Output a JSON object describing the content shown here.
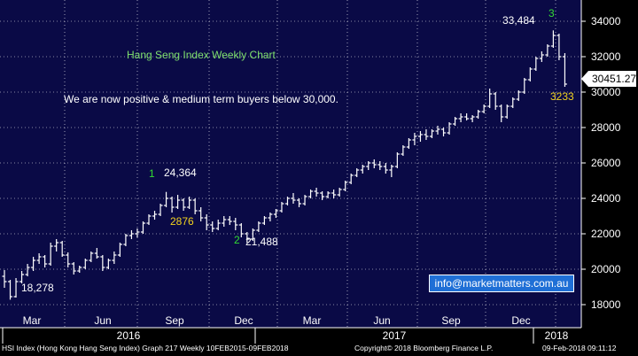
{
  "chart_data": {
    "type": "ohlc",
    "title": "Hang Seng Index Weekly Chart",
    "comment": "We are now positive & medium term buyers below 30,000.",
    "y_ticks": [
      18000,
      20000,
      22000,
      24000,
      26000,
      28000,
      30000,
      32000,
      34000
    ],
    "ylim": [
      16700,
      35200
    ],
    "x_month_labels": [
      "Mar",
      "Jun",
      "Sep",
      "Dec",
      "Mar",
      "Jun",
      "Sep",
      "Dec"
    ],
    "x_year_labels": [
      "2016",
      "2017",
      "2018"
    ],
    "last_price_label": "30451.27",
    "series": [
      {
        "name": "HSI Index",
        "values": [
          [
            19600,
            19950,
            18950,
            19300
          ],
          [
            19300,
            19400,
            18280,
            18450
          ],
          [
            18450,
            19500,
            18400,
            19300
          ],
          [
            19300,
            19900,
            19200,
            19700
          ],
          [
            19700,
            20300,
            19600,
            20100
          ],
          [
            20100,
            20700,
            19900,
            20500
          ],
          [
            20500,
            20900,
            20300,
            20700
          ],
          [
            20700,
            20800,
            20100,
            20300
          ],
          [
            20300,
            21500,
            20200,
            21300
          ],
          [
            21300,
            21700,
            21000,
            21500
          ],
          [
            21500,
            21600,
            20700,
            20800
          ],
          [
            20800,
            20950,
            20100,
            20300
          ],
          [
            20300,
            20400,
            19700,
            19900
          ],
          [
            19900,
            20200,
            19800,
            20100
          ],
          [
            20100,
            20600,
            20000,
            20500
          ],
          [
            20500,
            21000,
            20400,
            20900
          ],
          [
            20900,
            21200,
            20600,
            20700
          ],
          [
            20700,
            20800,
            19900,
            20100
          ],
          [
            20100,
            20600,
            20000,
            20500
          ],
          [
            20500,
            21000,
            20300,
            20800
          ],
          [
            20800,
            21500,
            20700,
            21400
          ],
          [
            21400,
            22000,
            21300,
            21900
          ],
          [
            21900,
            22200,
            21700,
            22000
          ],
          [
            22000,
            22300,
            21800,
            22100
          ],
          [
            22100,
            22700,
            22000,
            22600
          ],
          [
            22600,
            23100,
            22500,
            23000
          ],
          [
            23000,
            23300,
            22800,
            23100
          ],
          [
            23100,
            23700,
            23000,
            23600
          ],
          [
            23600,
            24364,
            23500,
            24000
          ],
          [
            24000,
            24100,
            23200,
            23500
          ],
          [
            23500,
            24200,
            23400,
            23900
          ],
          [
            23900,
            24000,
            23300,
            23500
          ],
          [
            23500,
            24100,
            23400,
            23900
          ],
          [
            23900,
            24000,
            23100,
            23300
          ],
          [
            23300,
            23500,
            22700,
            22900
          ],
          [
            22900,
            23100,
            22200,
            22500
          ],
          [
            22500,
            22700,
            22100,
            22300
          ],
          [
            22300,
            22800,
            22200,
            22600
          ],
          [
            22600,
            23000,
            22400,
            22800
          ],
          [
            22800,
            23000,
            22500,
            22700
          ],
          [
            22700,
            22900,
            22200,
            22500
          ],
          [
            22500,
            22600,
            21800,
            22000
          ],
          [
            22000,
            22100,
            21488,
            21700
          ],
          [
            21700,
            22300,
            21600,
            22200
          ],
          [
            22200,
            22700,
            22100,
            22600
          ],
          [
            22600,
            23000,
            22500,
            22900
          ],
          [
            22900,
            23200,
            22700,
            23100
          ],
          [
            23100,
            23400,
            22900,
            23300
          ],
          [
            23300,
            23800,
            23200,
            23700
          ],
          [
            23700,
            24100,
            23600,
            24000
          ],
          [
            24000,
            24300,
            23700,
            23900
          ],
          [
            23900,
            24000,
            23500,
            23700
          ],
          [
            23700,
            24200,
            23600,
            24100
          ],
          [
            24100,
            24500,
            24000,
            24400
          ],
          [
            24400,
            24600,
            24100,
            24300
          ],
          [
            24300,
            24400,
            23900,
            24100
          ],
          [
            24100,
            24400,
            24000,
            24300
          ],
          [
            24300,
            24500,
            24000,
            24200
          ],
          [
            24200,
            24600,
            24100,
            24500
          ],
          [
            24500,
            25000,
            24400,
            24900
          ],
          [
            24900,
            25400,
            24800,
            25300
          ],
          [
            25300,
            25700,
            25200,
            25600
          ],
          [
            25600,
            25900,
            25400,
            25800
          ],
          [
            25800,
            26100,
            25600,
            26000
          ],
          [
            26000,
            26200,
            25700,
            25900
          ],
          [
            25900,
            26100,
            25600,
            25800
          ],
          [
            25800,
            26000,
            25400,
            25600
          ],
          [
            25600,
            25900,
            25200,
            25800
          ],
          [
            25800,
            26600,
            25700,
            26500
          ],
          [
            26500,
            27000,
            26400,
            26900
          ],
          [
            26900,
            27400,
            26800,
            27300
          ],
          [
            27300,
            27700,
            27000,
            27500
          ],
          [
            27500,
            27800,
            27200,
            27600
          ],
          [
            27600,
            27900,
            27300,
            27500
          ],
          [
            27500,
            27900,
            27400,
            27800
          ],
          [
            27800,
            28100,
            27600,
            27900
          ],
          [
            27900,
            28000,
            27500,
            27700
          ],
          [
            27700,
            28300,
            27600,
            28200
          ],
          [
            28200,
            28600,
            28100,
            28500
          ],
          [
            28500,
            28800,
            28300,
            28600
          ],
          [
            28600,
            28800,
            28400,
            28500
          ],
          [
            28500,
            28700,
            28300,
            28600
          ],
          [
            28600,
            29000,
            28500,
            28900
          ],
          [
            28900,
            29300,
            28800,
            29200
          ],
          [
            29200,
            30200,
            29100,
            29900
          ],
          [
            29900,
            30000,
            29000,
            29200
          ],
          [
            29200,
            29300,
            28300,
            28600
          ],
          [
            28600,
            29300,
            28500,
            29200
          ],
          [
            29200,
            29700,
            29100,
            29600
          ],
          [
            29600,
            30100,
            29500,
            30000
          ],
          [
            30000,
            30800,
            29900,
            30700
          ],
          [
            30700,
            31400,
            30600,
            31300
          ],
          [
            31300,
            32000,
            31200,
            31900
          ],
          [
            31900,
            32300,
            31700,
            32100
          ],
          [
            32100,
            32700,
            32000,
            32600
          ],
          [
            32600,
            33484,
            32500,
            33200
          ],
          [
            33200,
            33300,
            31800,
            32000
          ],
          [
            32000,
            32200,
            30300,
            30451
          ]
        ]
      }
    ]
  },
  "annotations": {
    "high_2016": "24,364",
    "low_2016": "21,488",
    "low_start": "18,278",
    "high_2018": "33,484",
    "wave1": "1",
    "wave2": "2",
    "wave3": "3",
    "drop_2016": "2876",
    "drop_2018": "3233"
  },
  "email": "info@marketmatters.com.au",
  "footer": {
    "left": "HSI Index (Hong Kong Hang Seng Index) Graph 217  Weekly 10FEB2015-09FEB2018",
    "middle": "Copyright© 2018 Bloomberg Finance L.P.",
    "right": "09-Feb-2018 09:11:12"
  },
  "colors": {
    "background": "#0a0a46",
    "bars": "#ffffff",
    "last_price_box": "#ffffff",
    "email_box": "#1f6fd6"
  }
}
